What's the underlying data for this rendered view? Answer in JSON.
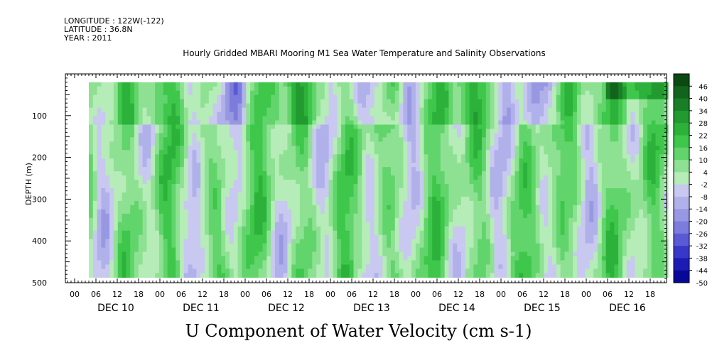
{
  "header": {
    "longitude": "LONGITUDE : 122W(-122)",
    "latitude": "LATITUDE : 36.8N",
    "year": "YEAR : 2011"
  },
  "chart_data": {
    "type": "heatmap",
    "title": "Hourly Gridded MBARI Mooring M1 Sea Water Temperature and Salinity Observations",
    "variable_label": "U Component of Water Velocity (cm s-1)",
    "ylabel": "DEPTH (m)",
    "xlabel": "",
    "y_axis": {
      "range": [
        500,
        0
      ],
      "ticks": [
        100,
        200,
        300,
        400,
        500
      ],
      "inverted": true
    },
    "x_axis": {
      "hour_labels": [
        "00",
        "06",
        "12",
        "18",
        "00",
        "06",
        "12",
        "18",
        "00",
        "06",
        "12",
        "18",
        "00",
        "06",
        "12",
        "18",
        "00",
        "06",
        "12",
        "18",
        "00",
        "06",
        "12",
        "18",
        "00",
        "06",
        "12",
        "18"
      ],
      "day_labels": [
        "DEC 10",
        "DEC 11",
        "DEC 12",
        "DEC 13",
        "DEC 14",
        "DEC 15",
        "DEC 16"
      ]
    },
    "colorbar": {
      "levels": [
        46,
        40,
        34,
        28,
        22,
        16,
        10,
        4,
        -2,
        -8,
        -14,
        -20,
        -26,
        -32,
        -38,
        -44,
        -50
      ],
      "colors_high_to_low": [
        "#0a4a12",
        "#12641c",
        "#1a7e26",
        "#229a30",
        "#2cb23a",
        "#3ec74b",
        "#62d46c",
        "#8ee193",
        "#b6ecb8",
        "#c8c8f0",
        "#b0b0ea",
        "#9898e2",
        "#7c7cdc",
        "#5a5ad4",
        "#3838c8",
        "#1c1cb4",
        "#080898"
      ]
    },
    "field_summary": {
      "data_depth_range_m": [
        20,
        487
      ],
      "data_time_start": "DEC 10 04:00",
      "data_time_end": "DEC 16 23:00",
      "value_range": [
        -26,
        46
      ],
      "pattern": "alternating vertical bands of positive (green) and negative (blue/violet) U velocity; strongest positive near surface late DEC 16, strongest negative near surface around DEC 11-12"
    }
  }
}
